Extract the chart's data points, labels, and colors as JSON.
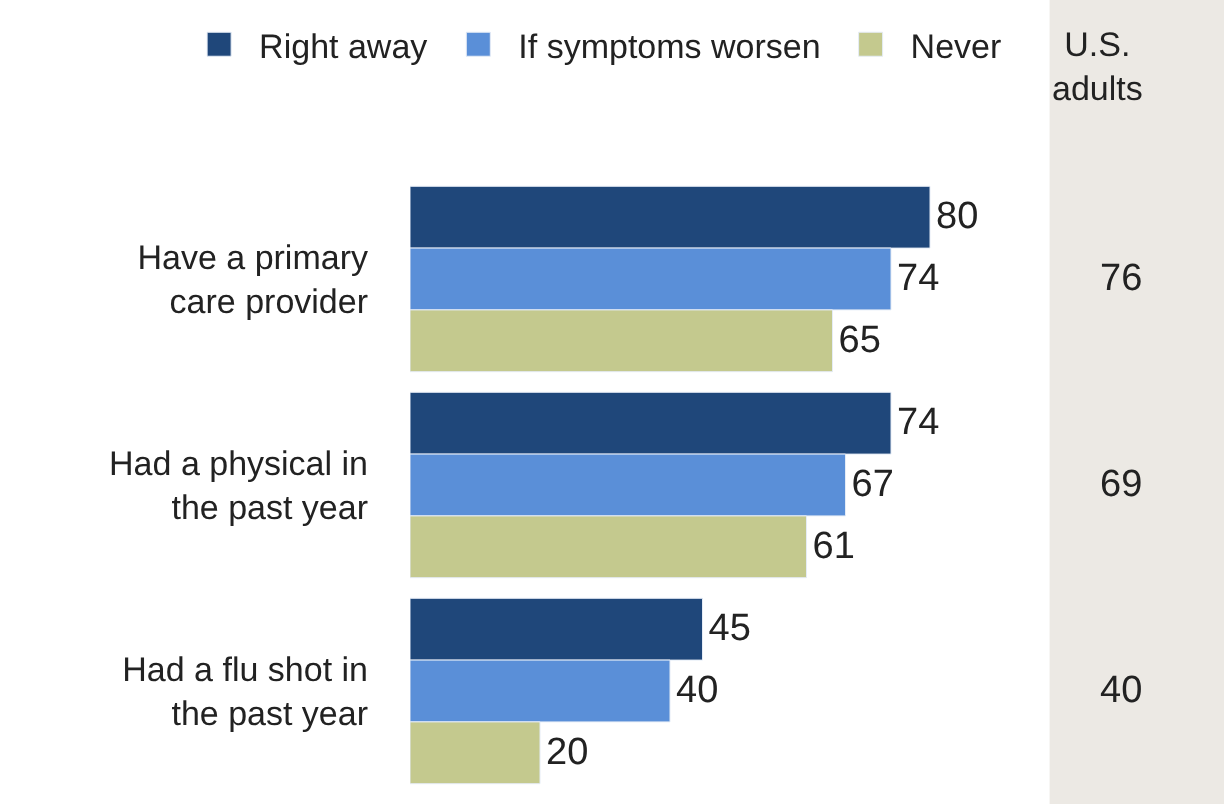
{
  "chart_data": {
    "type": "bar",
    "orientation": "horizontal",
    "categories": [
      "Have a primary care provider",
      "Had a physical in the past year",
      "Had a flu shot in the past year"
    ],
    "series": [
      {
        "name": "Right away",
        "color": "#1f477a",
        "values": [
          80,
          74,
          45
        ]
      },
      {
        "name": "If symptoms worsen",
        "color": "#5a8fd8",
        "values": [
          74,
          67,
          40
        ]
      },
      {
        "name": "Never",
        "color": "#c4c98e",
        "values": [
          65,
          61,
          20
        ]
      }
    ],
    "data_labels": true,
    "legend": "top",
    "tick_labels": "y",
    "annotations": [
      "U.S. adults",
      "76",
      "69",
      "40"
    ]
  }
}
